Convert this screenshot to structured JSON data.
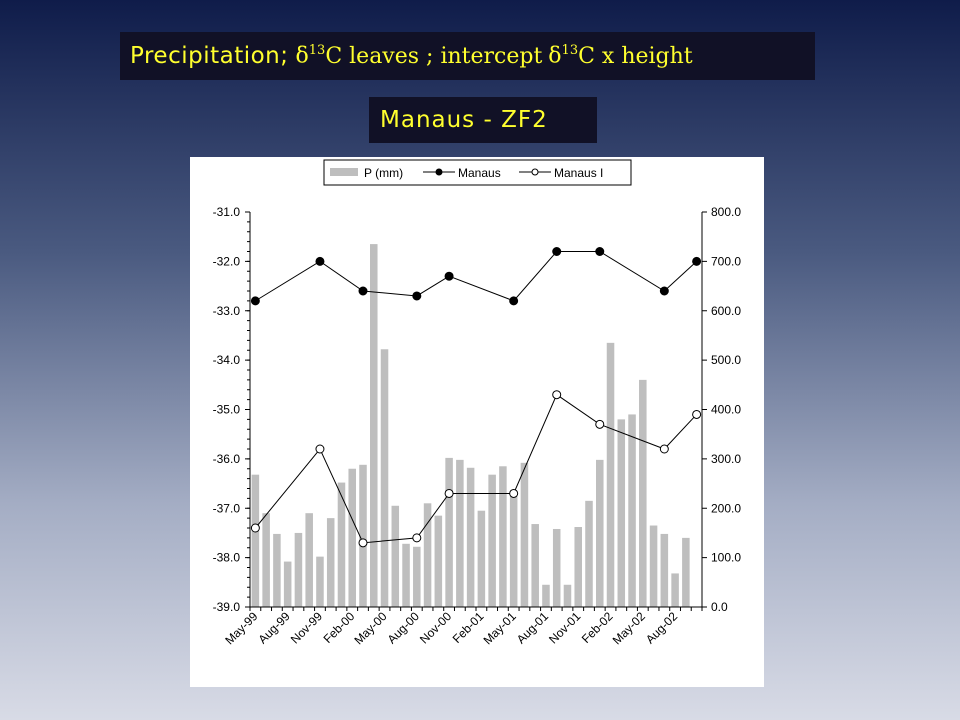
{
  "header": {
    "title_part1": "Precipitation;",
    "title_delta1": "δ",
    "title_sup1": "13",
    "title_part2": "C leaves ; intercept",
    "title_delta2": "δ",
    "title_sup2": "13",
    "title_part3": "C x height",
    "subtitle": "Manaus - ZF2"
  },
  "chart_data": {
    "type": "bar+line",
    "legend": {
      "placement": "top",
      "entries": [
        "P (mm)",
        "Manaus",
        "Manaus I"
      ]
    },
    "colors": {
      "bars": "#bebebe",
      "lines": "#000000",
      "marker_filled": "#000000",
      "marker_open": "#ffffff"
    },
    "x_tick_labels": [
      "May-99",
      "Aug-99",
      "Nov-99",
      "Feb-00",
      "May-00",
      "Aug-00",
      "Nov-00",
      "Feb-01",
      "May-01",
      "Aug-01",
      "Nov-01",
      "Feb-02",
      "May-02",
      "Aug-02"
    ],
    "months": [
      "May-99",
      "Jun-99",
      "Jul-99",
      "Aug-99",
      "Sep-99",
      "Oct-99",
      "Nov-99",
      "Dec-99",
      "Jan-00",
      "Feb-00",
      "Mar-00",
      "Apr-00",
      "May-00",
      "Jun-00",
      "Jul-00",
      "Aug-00",
      "Sep-00",
      "Oct-00",
      "Nov-00",
      "Dec-00",
      "Jan-01",
      "Feb-01",
      "Mar-01",
      "Apr-01",
      "May-01",
      "Jun-01",
      "Jul-01",
      "Aug-01",
      "Sep-01",
      "Oct-01",
      "Nov-01",
      "Dec-01",
      "Jan-02",
      "Feb-02",
      "Mar-02",
      "Apr-02",
      "May-02",
      "Jun-02",
      "Jul-02",
      "Aug-02",
      "Sep-02",
      "Oct-02"
    ],
    "left_axis": {
      "ylim": [
        -39.0,
        -31.0
      ],
      "ticks": [
        "-31.0",
        "-32.0",
        "-33.0",
        "-34.0",
        "-35.0",
        "-36.0",
        "-37.0",
        "-38.0",
        "-39.0"
      ]
    },
    "right_axis": {
      "ylim": [
        0,
        800
      ],
      "ticks": [
        "800.0",
        "700.0",
        "600.0",
        "500.0",
        "400.0",
        "300.0",
        "200.0",
        "100.0",
        "0.0"
      ]
    },
    "series": [
      {
        "name": "P (mm)",
        "kind": "bar",
        "axis": "right",
        "values": [
          268,
          190,
          148,
          92,
          150,
          190,
          102,
          180,
          252,
          280,
          288,
          735,
          522,
          205,
          128,
          122,
          210,
          185,
          302,
          298,
          282,
          195,
          268,
          285,
          225,
          292,
          168,
          45,
          158,
          45,
          162,
          215,
          298,
          535,
          380,
          390,
          460,
          165,
          148,
          68,
          140,
          0
        ]
      },
      {
        "name": "Manaus",
        "kind": "line",
        "axis": "left",
        "marker": "filled",
        "points": [
          {
            "m": 0,
            "v": -32.8
          },
          {
            "m": 6,
            "v": -32.0
          },
          {
            "m": 10,
            "v": -32.6
          },
          {
            "m": 15,
            "v": -32.7
          },
          {
            "m": 18,
            "v": -32.3
          },
          {
            "m": 24,
            "v": -32.8
          },
          {
            "m": 28,
            "v": -31.8
          },
          {
            "m": 32,
            "v": -31.8
          },
          {
            "m": 38,
            "v": -32.6
          },
          {
            "m": 41,
            "v": -32.0
          }
        ]
      },
      {
        "name": "Manaus I",
        "kind": "line",
        "axis": "left",
        "marker": "open",
        "points": [
          {
            "m": 0,
            "v": -37.4
          },
          {
            "m": 6,
            "v": -35.8
          },
          {
            "m": 10,
            "v": -37.7
          },
          {
            "m": 15,
            "v": -37.6
          },
          {
            "m": 18,
            "v": -36.7
          },
          {
            "m": 24,
            "v": -36.7
          },
          {
            "m": 28,
            "v": -34.7
          },
          {
            "m": 32,
            "v": -35.3
          },
          {
            "m": 38,
            "v": -35.8
          },
          {
            "m": 41,
            "v": -35.1
          }
        ]
      }
    ]
  }
}
